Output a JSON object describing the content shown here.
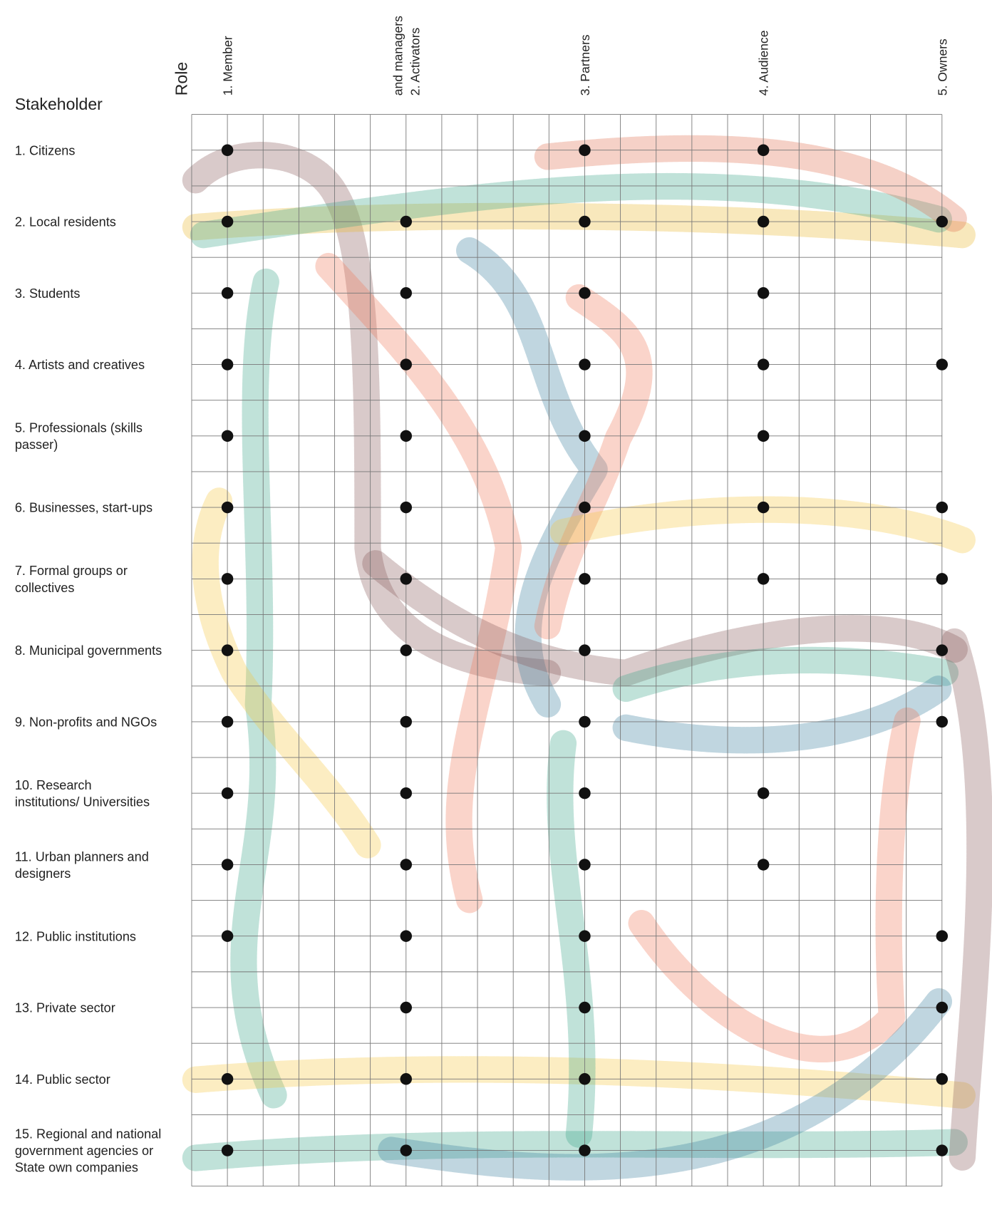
{
  "header": {
    "title": "Stakeholder",
    "role_label": "Role"
  },
  "roles": [
    [
      "1. Member"
    ],
    [
      "2. Activators",
      "and managers"
    ],
    [
      "3. Partners"
    ],
    [
      "4. Audience"
    ],
    [
      "5. Owners"
    ]
  ],
  "stakeholders": [
    {
      "label": [
        "1. Citizens"
      ],
      "roles": [
        1,
        3,
        4
      ]
    },
    {
      "label": [
        "2. Local residents"
      ],
      "roles": [
        1,
        2,
        3,
        4,
        5
      ]
    },
    {
      "label": [
        "3. Students"
      ],
      "roles": [
        1,
        2,
        3,
        4
      ]
    },
    {
      "label": [
        "4. Artists and creatives"
      ],
      "roles": [
        1,
        2,
        3,
        4,
        5
      ]
    },
    {
      "label": [
        "5. Professionals (skills",
        "passer)"
      ],
      "roles": [
        1,
        2,
        3,
        4
      ]
    },
    {
      "label": [
        "6. Businesses, start-ups"
      ],
      "roles": [
        1,
        2,
        3,
        4,
        5
      ]
    },
    {
      "label": [
        "7. Formal groups or",
        "collectives"
      ],
      "roles": [
        1,
        2,
        3,
        4,
        5
      ]
    },
    {
      "label": [
        "8. Municipal governments"
      ],
      "roles": [
        1,
        2,
        3,
        5
      ]
    },
    {
      "label": [
        "9. Non-profits and NGOs"
      ],
      "roles": [
        1,
        2,
        3,
        5
      ]
    },
    {
      "label": [
        "10. Research",
        "institutions/ Universities"
      ],
      "roles": [
        1,
        2,
        3,
        4
      ]
    },
    {
      "label": [
        "11. Urban planners and",
        "designers"
      ],
      "roles": [
        1,
        2,
        3,
        4
      ]
    },
    {
      "label": [
        "12. Public institutions"
      ],
      "roles": [
        1,
        2,
        3,
        5
      ]
    },
    {
      "label": [
        "13. Private sector"
      ],
      "roles": [
        2,
        3,
        5
      ]
    },
    {
      "label": [
        "14. Public sector"
      ],
      "roles": [
        1,
        2,
        3,
        5
      ]
    },
    {
      "label": [
        "15. Regional and national",
        "government agencies or",
        "State own companies"
      ],
      "roles": [
        1,
        2,
        3,
        5
      ]
    }
  ]
}
